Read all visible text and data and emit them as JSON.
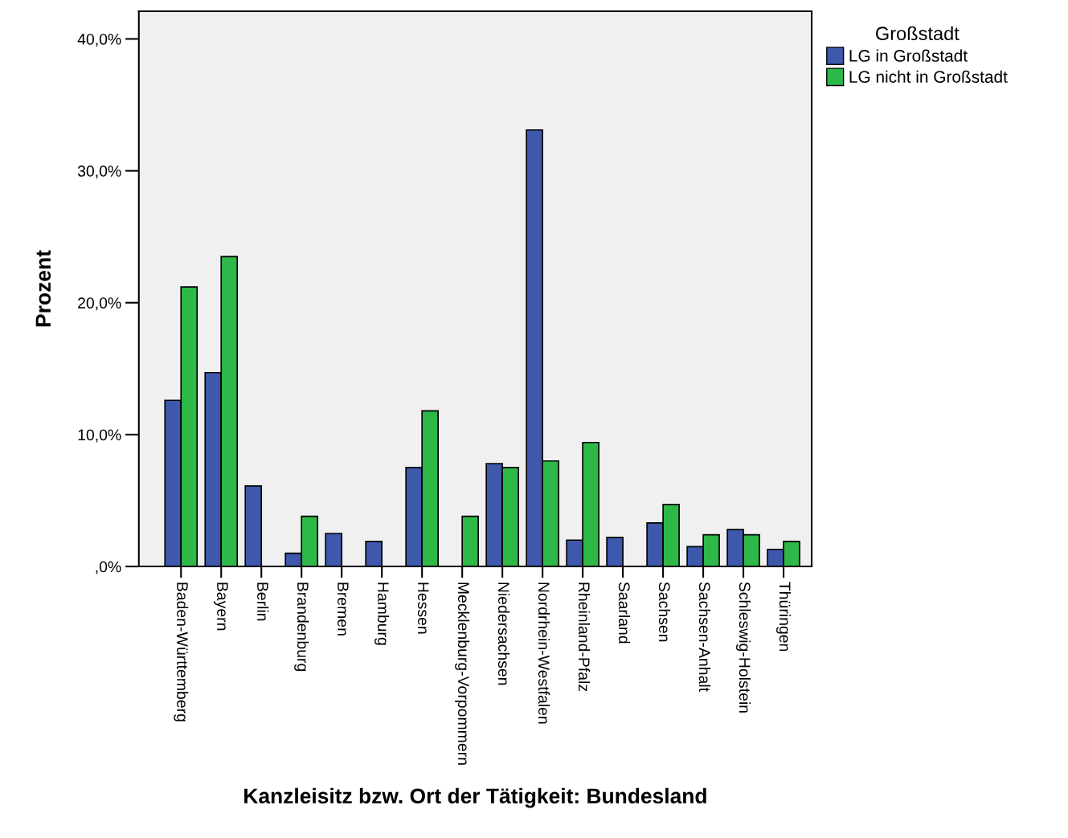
{
  "chart_data": {
    "type": "bar",
    "xlabel": "Kanzleisitz bzw. Ort der Tätigkeit: Bundesland",
    "ylabel": "Prozent",
    "legend_title": "Großstadt",
    "categories": [
      "Baden-Württemberg",
      "Bayern",
      "Berlin",
      "Brandenburg",
      "Bremen",
      "Hamburg",
      "Hessen",
      "Mecklenburg-Vorpommern",
      "Niedersachsen",
      "Nordrhein-Westfalen",
      "Rheinland-Pfalz",
      "Saarland",
      "Sachsen",
      "Sachsen-Anhalt",
      "Schleswig-Holstein",
      "Thüringen"
    ],
    "series": [
      {
        "name": "LG in Großstadt",
        "color": "#3e58ac",
        "values": [
          12.6,
          14.7,
          6.1,
          1.0,
          2.5,
          1.9,
          7.5,
          0,
          7.8,
          33.1,
          2.0,
          2.2,
          3.3,
          1.5,
          2.8,
          1.3
        ]
      },
      {
        "name": "LG nicht in Großstadt",
        "color": "#2eb848",
        "values": [
          21.2,
          23.5,
          0,
          3.8,
          0,
          0,
          11.8,
          3.8,
          7.5,
          8.0,
          9.4,
          0,
          4.7,
          2.4,
          2.4,
          1.9
        ]
      }
    ],
    "ylim": [
      0,
      42.1
    ],
    "yticks": [
      {
        "value": 0,
        "label": ",0%"
      },
      {
        "value": 10,
        "label": "10,0%"
      },
      {
        "value": 20,
        "label": "20,0%"
      },
      {
        "value": 30,
        "label": "30,0%"
      },
      {
        "value": 40,
        "label": "40,0%"
      }
    ],
    "grid": false,
    "legend": "right"
  }
}
